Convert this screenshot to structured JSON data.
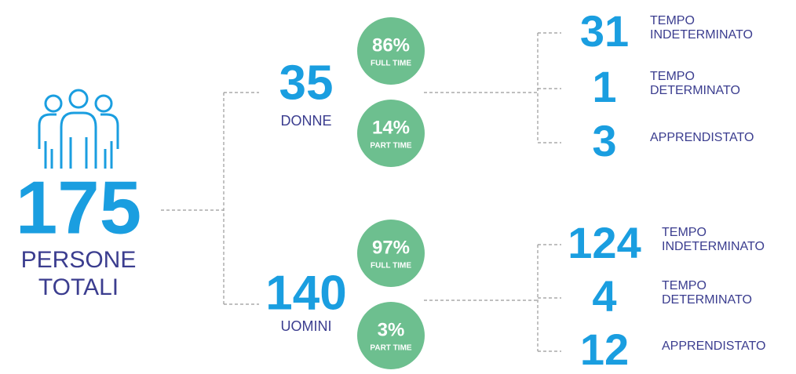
{
  "total": {
    "number": "175",
    "label_lines": [
      "PERSONE",
      "TOTALI"
    ]
  },
  "groups": [
    {
      "number": "35",
      "label": "DONNE",
      "shares": [
        {
          "value": "86%",
          "label": "FULL TIME"
        },
        {
          "value": "14%",
          "label": "PART TIME"
        }
      ],
      "contracts": [
        {
          "number": "31",
          "label_lines": [
            "TEMPO",
            "INDETERMINATO"
          ]
        },
        {
          "number": "1",
          "label_lines": [
            "TEMPO",
            "DETERMINATO"
          ]
        },
        {
          "number": "3",
          "label_lines": [
            "APPRENDISTATO"
          ]
        }
      ]
    },
    {
      "number": "140",
      "label": "UOMINI",
      "shares": [
        {
          "value": "97%",
          "label": "FULL TIME"
        },
        {
          "value": "3%",
          "label": "PART TIME"
        }
      ],
      "contracts": [
        {
          "number": "124",
          "label_lines": [
            "TEMPO",
            "INDETERMINATO"
          ]
        },
        {
          "number": "4",
          "label_lines": [
            "TEMPO",
            "DETERMINATO"
          ]
        },
        {
          "number": "12",
          "label_lines": [
            "APPRENDISTATO"
          ]
        }
      ]
    }
  ]
}
